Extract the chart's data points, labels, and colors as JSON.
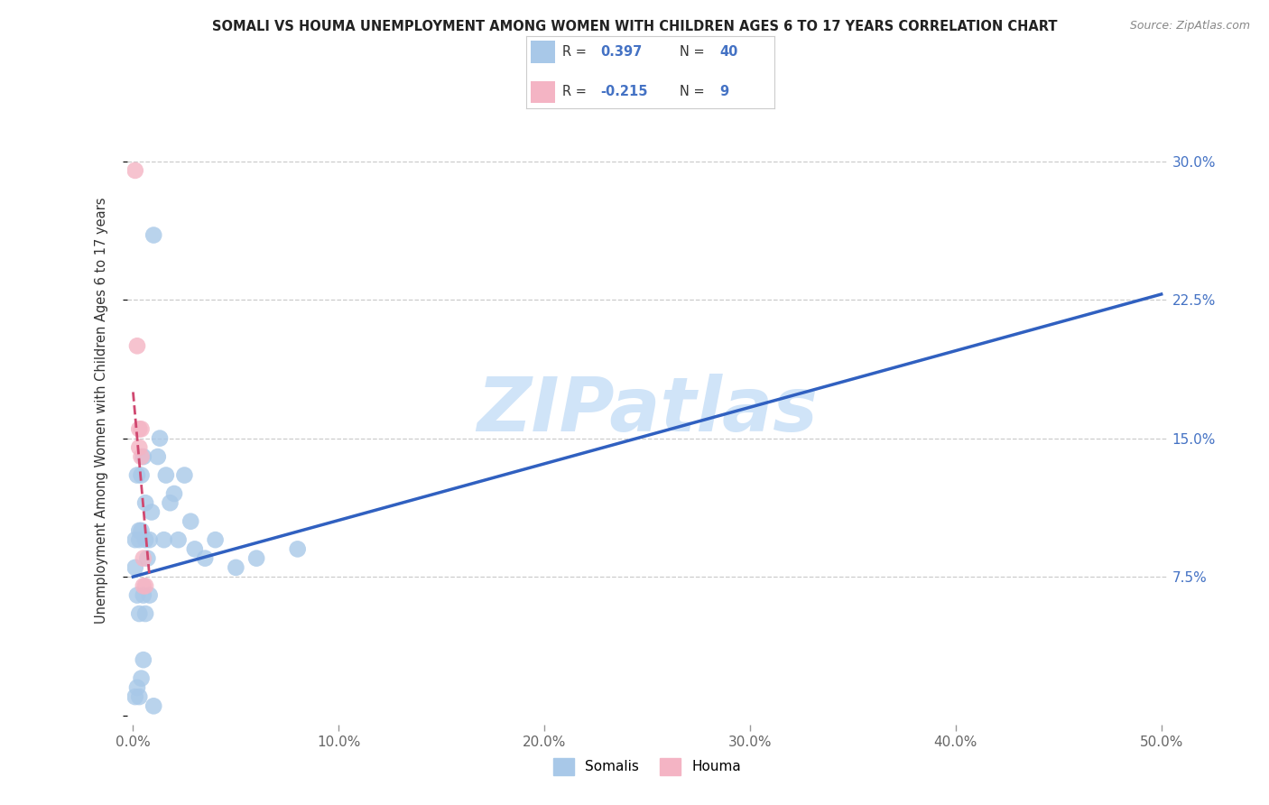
{
  "title": "SOMALI VS HOUMA UNEMPLOYMENT AMONG WOMEN WITH CHILDREN AGES 6 TO 17 YEARS CORRELATION CHART",
  "source": "Source: ZipAtlas.com",
  "ylabel": "Unemployment Among Women with Children Ages 6 to 17 years",
  "xlim": [
    -0.003,
    0.503
  ],
  "ylim": [
    -0.005,
    0.335
  ],
  "xticks": [
    0.0,
    0.1,
    0.2,
    0.3,
    0.4,
    0.5
  ],
  "xticklabels": [
    "0.0%",
    "10.0%",
    "20.0%",
    "30.0%",
    "40.0%",
    "50.0%"
  ],
  "yticks_right": [
    0.075,
    0.15,
    0.225,
    0.3
  ],
  "yticklabels_right": [
    "7.5%",
    "15.0%",
    "22.5%",
    "30.0%"
  ],
  "somali_R": "0.397",
  "somali_N": "40",
  "houma_R": "-0.215",
  "houma_N": "9",
  "somali_color": "#a8c8e8",
  "houma_color": "#f4b4c4",
  "somali_line_color": "#3060c0",
  "houma_line_color": "#d04870",
  "watermark": "ZIPatlas",
  "watermark_color": "#d0e4f8",
  "bg_color": "#ffffff",
  "grid_color": "#cccccc",
  "somali_x": [
    0.001,
    0.002,
    0.001,
    0.003,
    0.002,
    0.003,
    0.003,
    0.004,
    0.004,
    0.005,
    0.005,
    0.006,
    0.006,
    0.007,
    0.008,
    0.009,
    0.01,
    0.012,
    0.013,
    0.015,
    0.016,
    0.018,
    0.02,
    0.022,
    0.025,
    0.028,
    0.03,
    0.035,
    0.04,
    0.05,
    0.06,
    0.08,
    0.001,
    0.002,
    0.003,
    0.004,
    0.005,
    0.006,
    0.008,
    0.01
  ],
  "somali_y": [
    0.095,
    0.13,
    0.08,
    0.1,
    0.065,
    0.055,
    0.095,
    0.13,
    0.1,
    0.065,
    0.14,
    0.115,
    0.095,
    0.085,
    0.095,
    0.11,
    0.26,
    0.14,
    0.15,
    0.095,
    0.13,
    0.115,
    0.12,
    0.095,
    0.13,
    0.105,
    0.09,
    0.085,
    0.095,
    0.08,
    0.085,
    0.09,
    0.01,
    0.015,
    0.01,
    0.02,
    0.03,
    0.055,
    0.065,
    0.005
  ],
  "houma_x": [
    0.001,
    0.002,
    0.003,
    0.003,
    0.004,
    0.004,
    0.005,
    0.005,
    0.006
  ],
  "houma_y": [
    0.295,
    0.2,
    0.155,
    0.145,
    0.155,
    0.14,
    0.085,
    0.07,
    0.07
  ],
  "somali_line_x": [
    0.0,
    0.5
  ],
  "somali_line_y": [
    0.075,
    0.228
  ],
  "houma_line_x": [
    0.0,
    0.008
  ],
  "houma_line_y": [
    0.175,
    0.075
  ]
}
